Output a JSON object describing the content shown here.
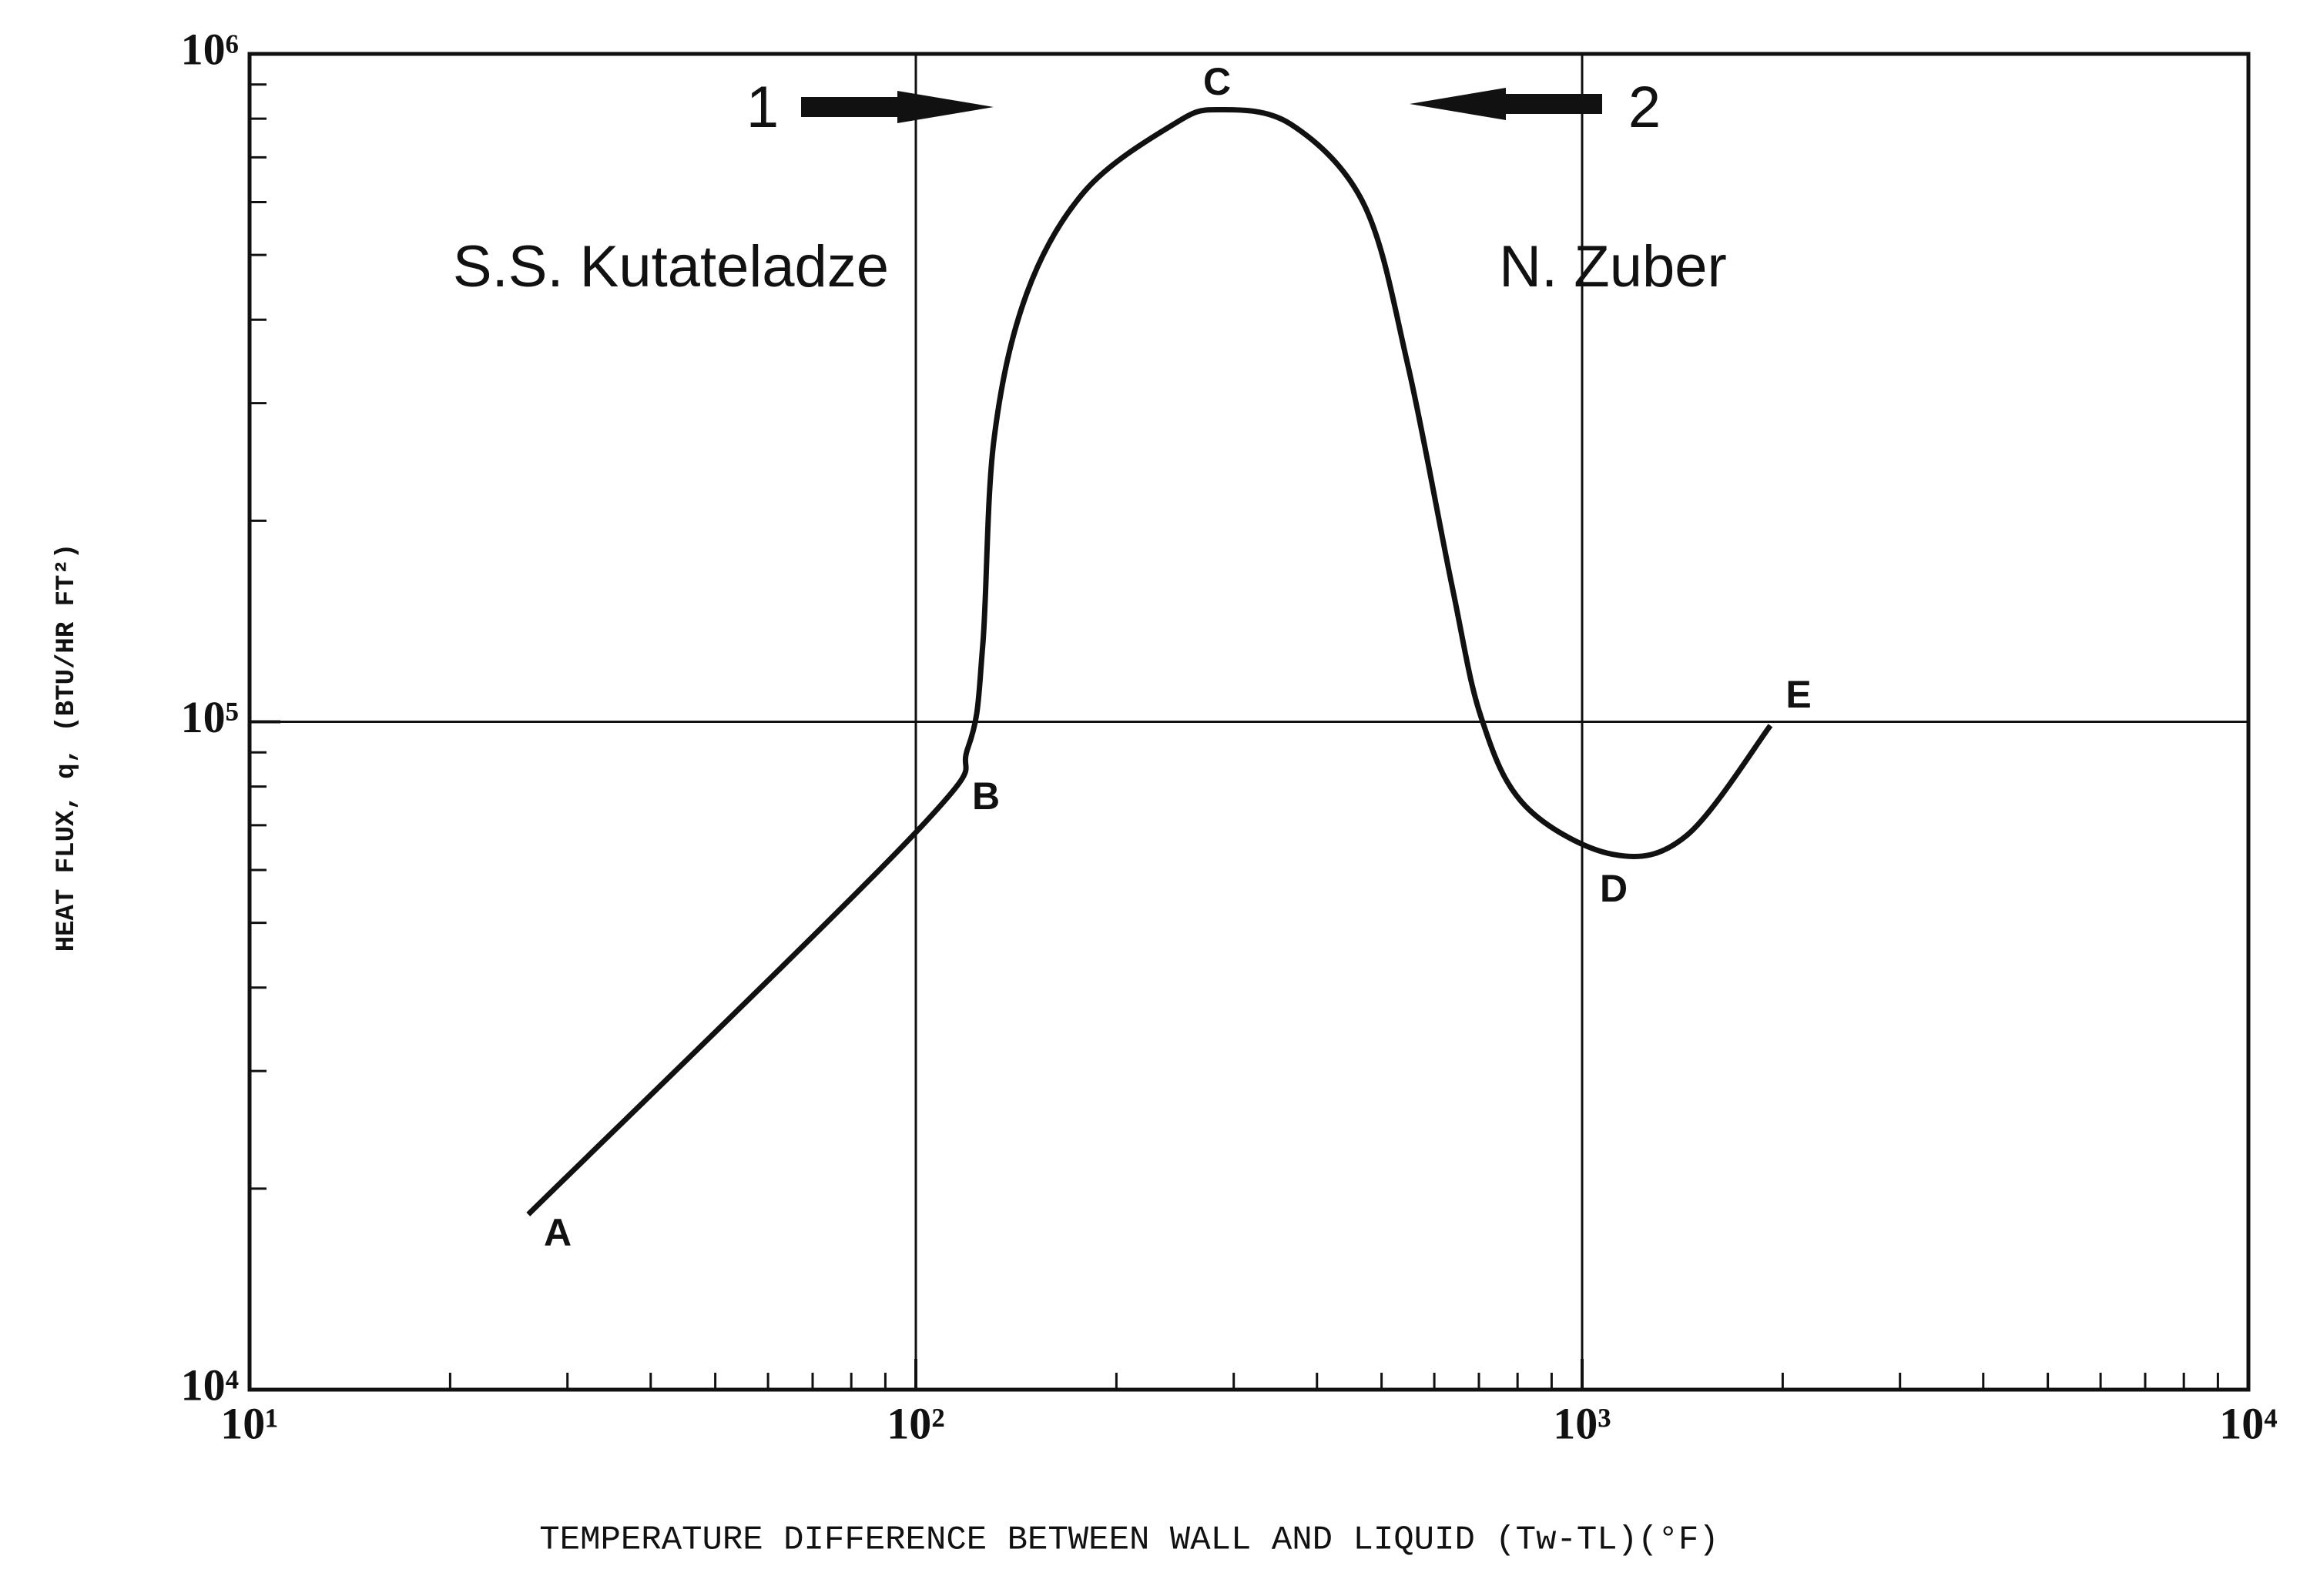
{
  "chart_data": {
    "type": "line",
    "xlabel": "TEMPERATURE DIFFERENCE BETWEEN WALL AND LIQUID (Tw-TL)(°F)",
    "ylabel": "HEAT FLUX, q, (BTU/HR FT²)",
    "x_scale": "log",
    "y_scale": "log",
    "grid": true,
    "xlim": [
      10,
      10000
    ],
    "ylim": [
      10000,
      1000000
    ],
    "xticks": [
      {
        "value": 10,
        "label": "10¹"
      },
      {
        "value": 100,
        "label": "10²"
      },
      {
        "value": 1000,
        "label": "10³"
      },
      {
        "value": 10000,
        "label": "10⁴"
      }
    ],
    "yticks": [
      {
        "value": 10000,
        "label": "10⁴"
      },
      {
        "value": 100000,
        "label": "10⁵"
      },
      {
        "value": 1000000,
        "label": "10⁶"
      }
    ],
    "xminorticks": [
      20,
      30,
      40,
      50,
      60,
      70,
      80,
      90,
      200,
      300,
      400,
      500,
      600,
      700,
      800,
      900,
      2000,
      3000,
      4000,
      5000,
      6000,
      7000,
      8000,
      9000
    ],
    "yminorticks": [
      20000,
      30000,
      40000,
      50000,
      60000,
      70000,
      80000,
      90000,
      200000,
      300000,
      400000,
      500000,
      600000,
      700000,
      800000,
      900000
    ],
    "x": [
      26.2,
      100,
      119.8,
      126,
      131,
      146.8,
      179.8,
      243.7,
      283.7,
      365.5,
      471,
      548,
      638,
      706,
      822,
      1114,
      1436,
      1917
    ],
    "series": [
      {
        "color": "#111111",
        "values": [
          18300,
          68300,
          91600,
          130000,
          264600,
          438600,
          625000,
          784600,
          825000,
          784600,
          594000,
          340800,
          159600,
          101300,
          74800,
          63300,
          67600,
          98700
        ]
      }
    ],
    "annotations": [
      "1",
      "2",
      "S.S. Kutateladze",
      "N. Zuber",
      "A",
      "B",
      "C",
      "D",
      "E"
    ]
  }
}
